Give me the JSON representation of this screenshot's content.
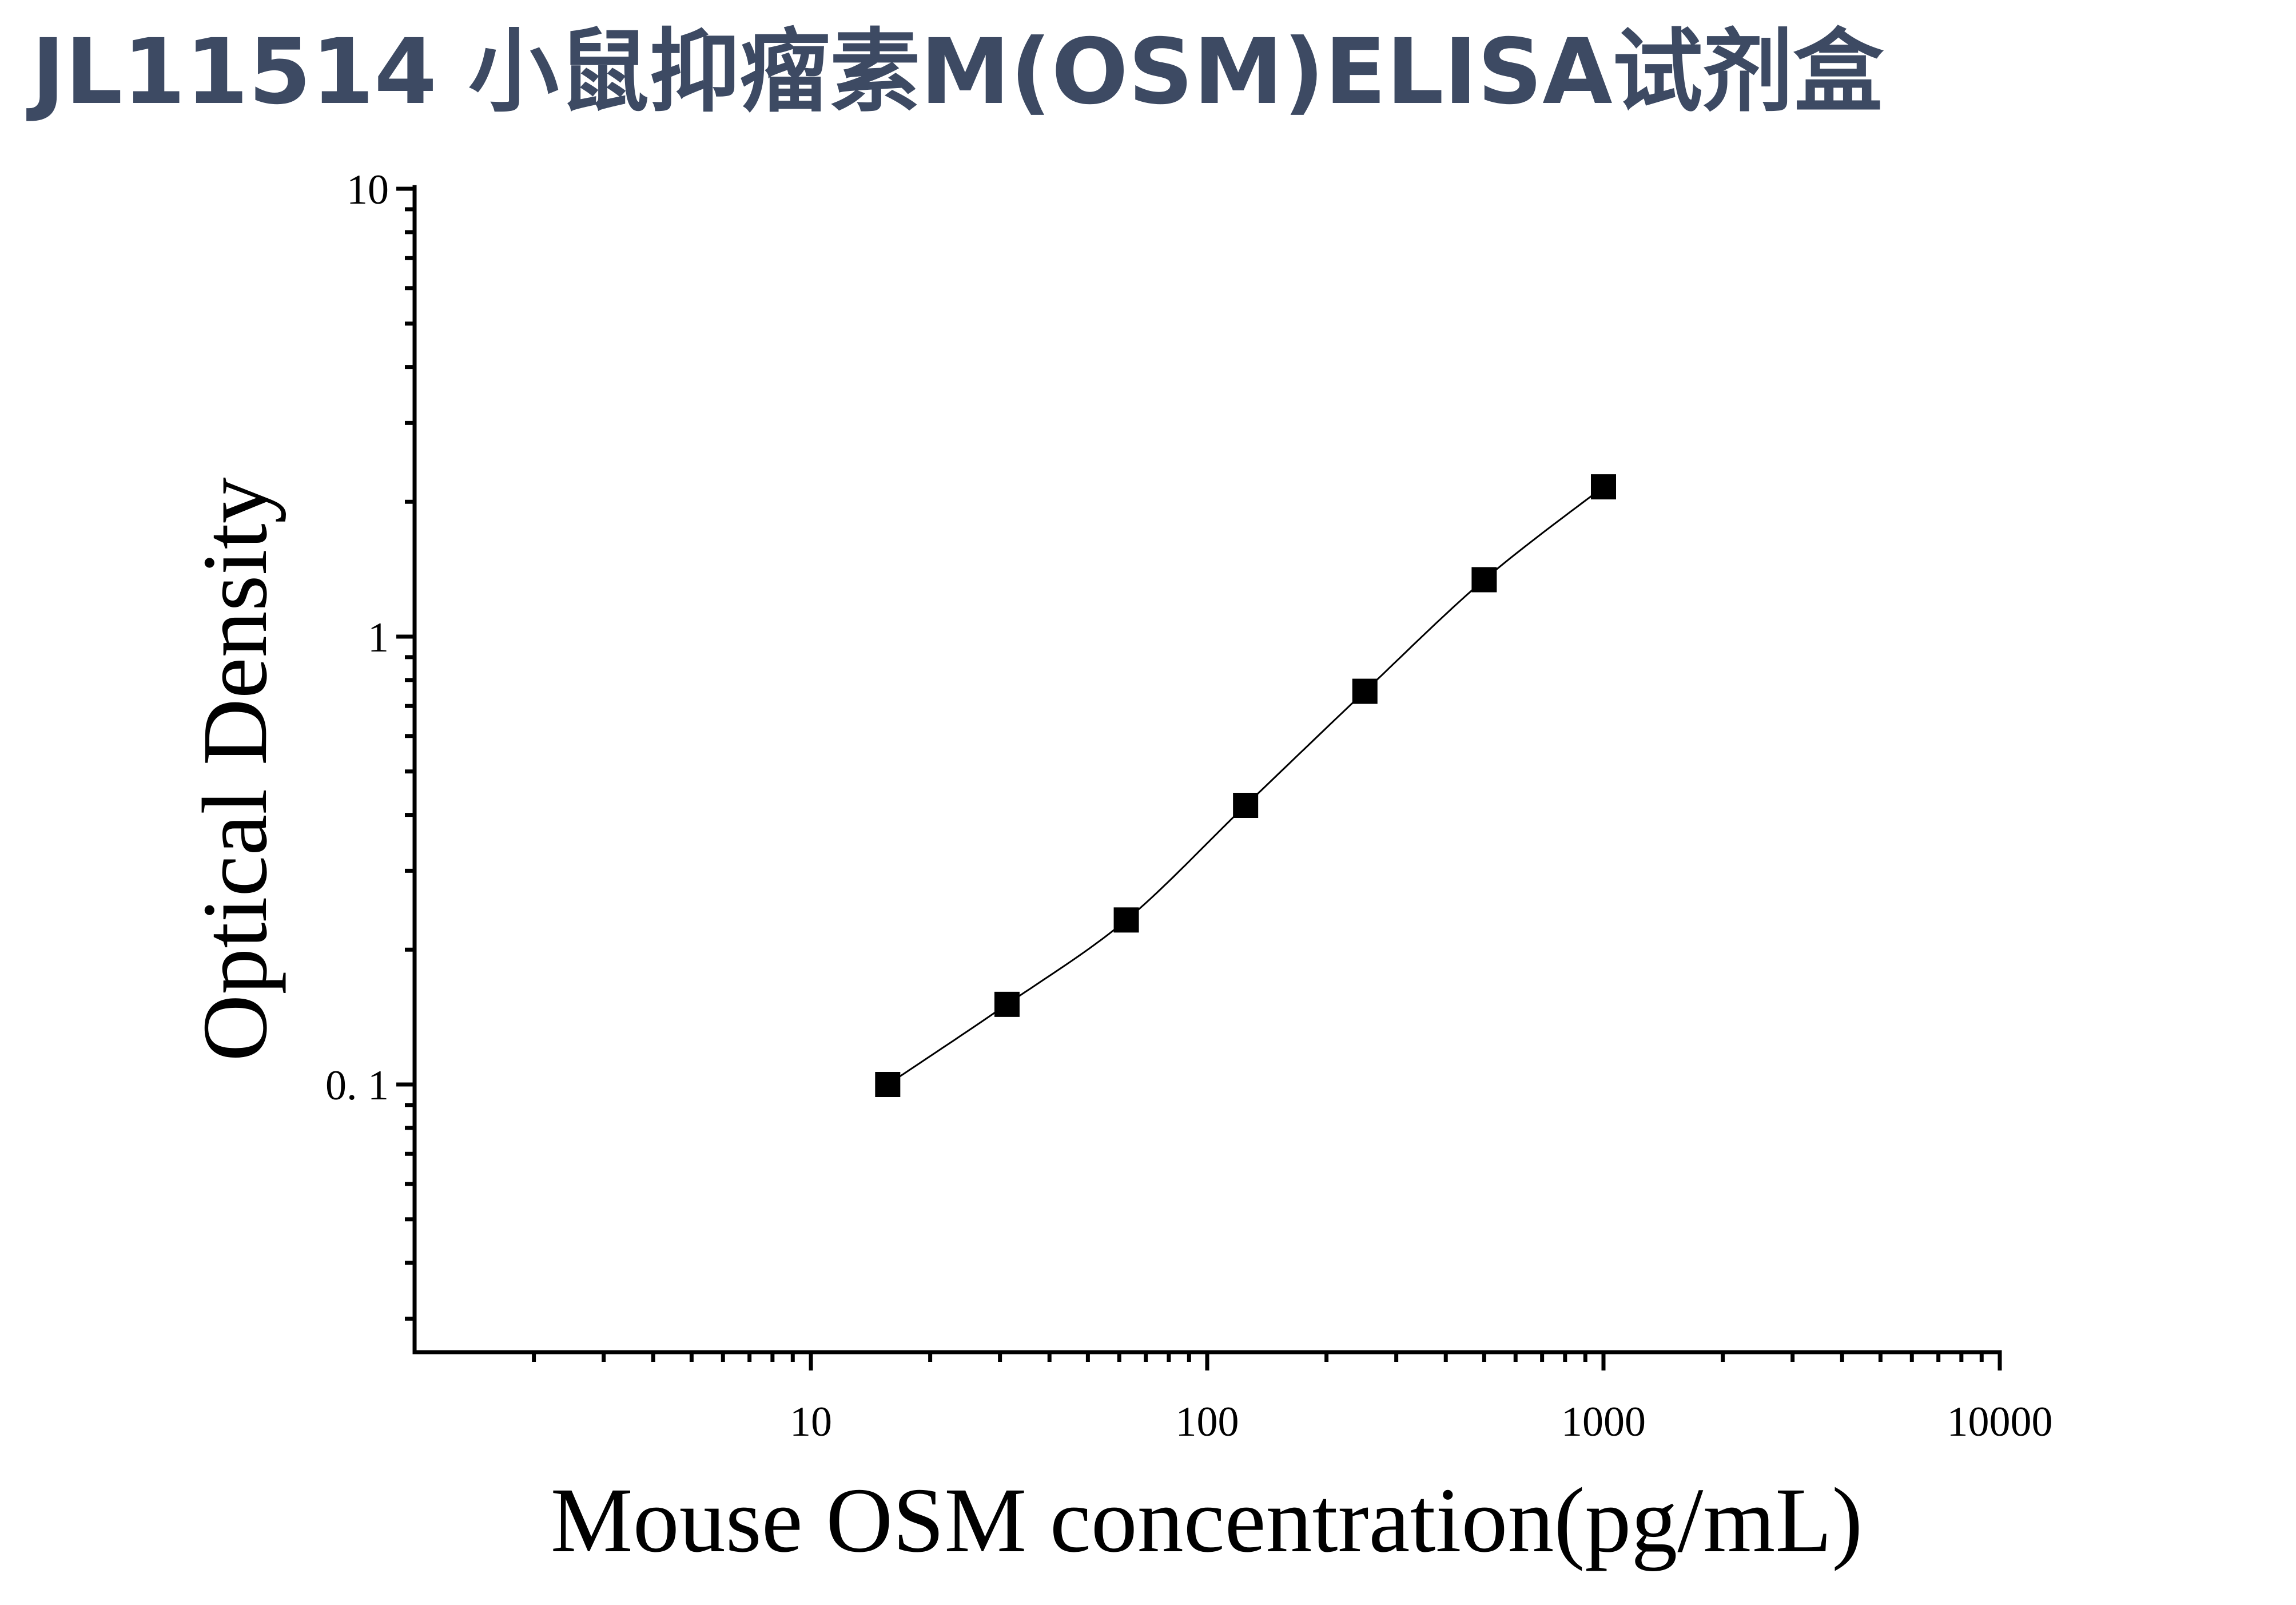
{
  "title": "JL11514 小鼠抑瘤素M(OSM)ELISA试剂盒",
  "chart_data": {
    "type": "scatter",
    "xscale": "log",
    "yscale": "log",
    "xlim": [
      1,
      10000
    ],
    "ylim": [
      0.025,
      10
    ],
    "xlabel": "Mouse OSM concentration(pg/mL)",
    "ylabel": "Optical Density",
    "x_ticks": [
      {
        "value": 10,
        "label": "10"
      },
      {
        "value": 100,
        "label": "100"
      },
      {
        "value": 1000,
        "label": "1000"
      },
      {
        "value": 10000,
        "label": "10000"
      }
    ],
    "y_ticks": [
      {
        "value": 0.1,
        "label": "0. 1"
      },
      {
        "value": 1,
        "label": "1"
      },
      {
        "value": 10,
        "label": "10"
      }
    ],
    "series": [
      {
        "marker": "square",
        "color": "#000000",
        "x": [
          15.625,
          31.25,
          62.5,
          125,
          250,
          500,
          1000
        ],
        "y": [
          0.1,
          0.151,
          0.233,
          0.42,
          0.755,
          1.34,
          2.16
        ]
      }
    ],
    "fit_curve": {
      "style": "thin-line",
      "color": "#000000"
    },
    "grid": false,
    "legend": "none"
  }
}
